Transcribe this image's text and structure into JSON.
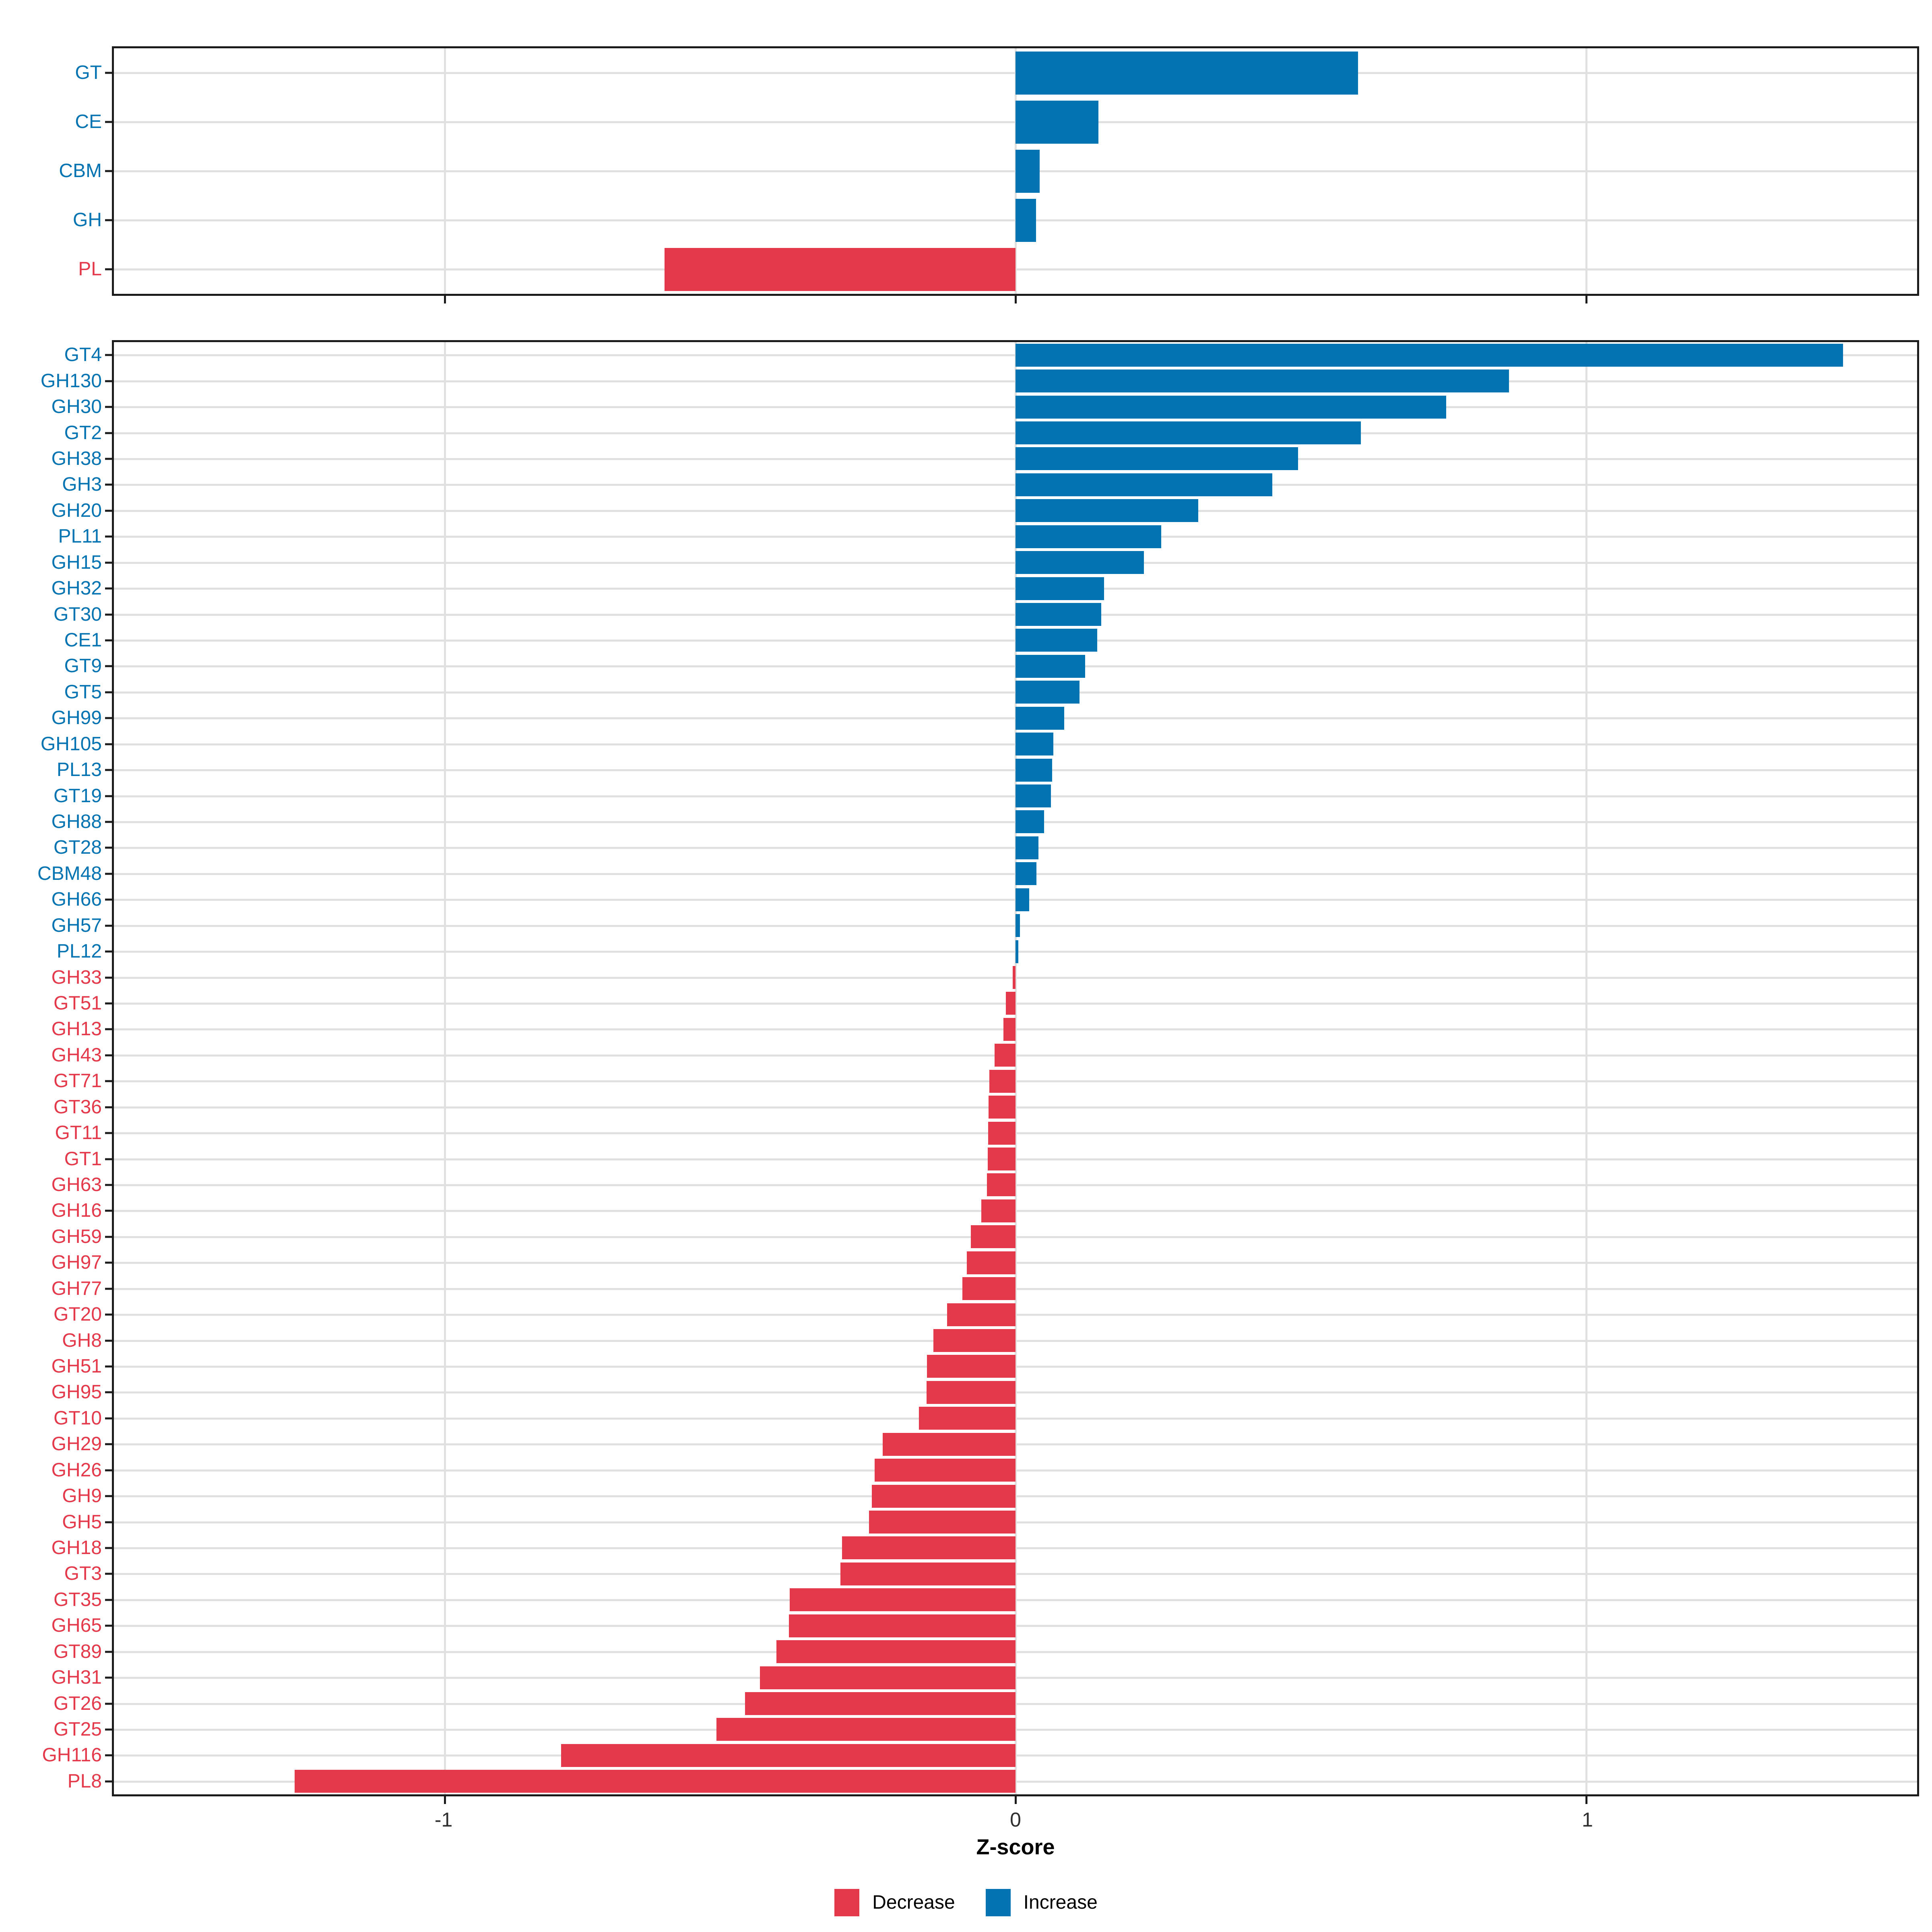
{
  "figure": {
    "x_axis_title": "Z-score",
    "legend": {
      "decrease_label": "Decrease",
      "increase_label": "Increase"
    }
  },
  "colors": {
    "increase": "#0473B2",
    "decrease": "#E3394A",
    "grid": "#E0E0E0",
    "panel_border": "#1B1B1B",
    "axis_text": "#2E2E2E"
  },
  "chart_data": [
    {
      "type": "bar",
      "orientation": "horizontal",
      "facet": "CAZyme class (top panel)",
      "xlabel": "Z-score",
      "xlim": [
        -1.58,
        1.58
      ],
      "x_ticks": [
        -1,
        0,
        1
      ],
      "x_tick_labels": [
        "-1",
        "0",
        "1"
      ],
      "grid": "major vertical + one horizontal line per category",
      "legend_position": "bottom",
      "categories": [
        "GT",
        "CE",
        "CBM",
        "GH",
        "PL"
      ],
      "values": [
        0.6,
        0.145,
        0.042,
        0.036,
        -0.615
      ],
      "series_note": "positive = Increase (blue), negative = Decrease (red)"
    },
    {
      "type": "bar",
      "orientation": "horizontal",
      "facet": "CAZyme family (bottom panel)",
      "xlabel": "Z-score",
      "xlim": [
        -1.58,
        1.58
      ],
      "x_ticks": [
        -1,
        0,
        1
      ],
      "x_tick_labels": [
        "-1",
        "0",
        "1"
      ],
      "grid": "major vertical + one horizontal line per category",
      "legend_position": "bottom",
      "categories": [
        "GT4",
        "GH130",
        "GH30",
        "GT2",
        "GH38",
        "GH3",
        "GH20",
        "PL11",
        "GH15",
        "GH32",
        "GT30",
        "CE1",
        "GT9",
        "GT5",
        "GH99",
        "GH105",
        "PL13",
        "GT19",
        "GH88",
        "GT28",
        "CBM48",
        "GH66",
        "GH57",
        "PL12",
        "GH33",
        "GT51",
        "GH13",
        "GH43",
        "GT71",
        "GT36",
        "GT11",
        "GT1",
        "GH63",
        "GH16",
        "GH59",
        "GH97",
        "GH77",
        "GT20",
        "GH8",
        "GH51",
        "GH95",
        "GT10",
        "GH29",
        "GH26",
        "GH9",
        "GH5",
        "GH18",
        "GT3",
        "GT35",
        "GH65",
        "GT89",
        "GH31",
        "GT26",
        "GT25",
        "GH116",
        "PL8"
      ],
      "values": [
        1.45,
        0.865,
        0.755,
        0.605,
        0.495,
        0.45,
        0.32,
        0.255,
        0.225,
        0.155,
        0.15,
        0.143,
        0.122,
        0.112,
        0.085,
        0.066,
        0.064,
        0.062,
        0.05,
        0.04,
        0.037,
        0.024,
        0.008,
        0.005,
        -0.005,
        -0.017,
        -0.021,
        -0.037,
        -0.046,
        -0.047,
        -0.048,
        -0.049,
        -0.05,
        -0.06,
        -0.078,
        -0.085,
        -0.093,
        -0.12,
        -0.144,
        -0.155,
        -0.156,
        -0.169,
        -0.233,
        -0.247,
        -0.252,
        -0.257,
        -0.304,
        -0.307,
        -0.396,
        -0.397,
        -0.419,
        -0.448,
        -0.474,
        -0.524,
        -0.796,
        -1.263
      ],
      "series_note": "positive = Increase (blue), negative = Decrease (red)"
    }
  ]
}
